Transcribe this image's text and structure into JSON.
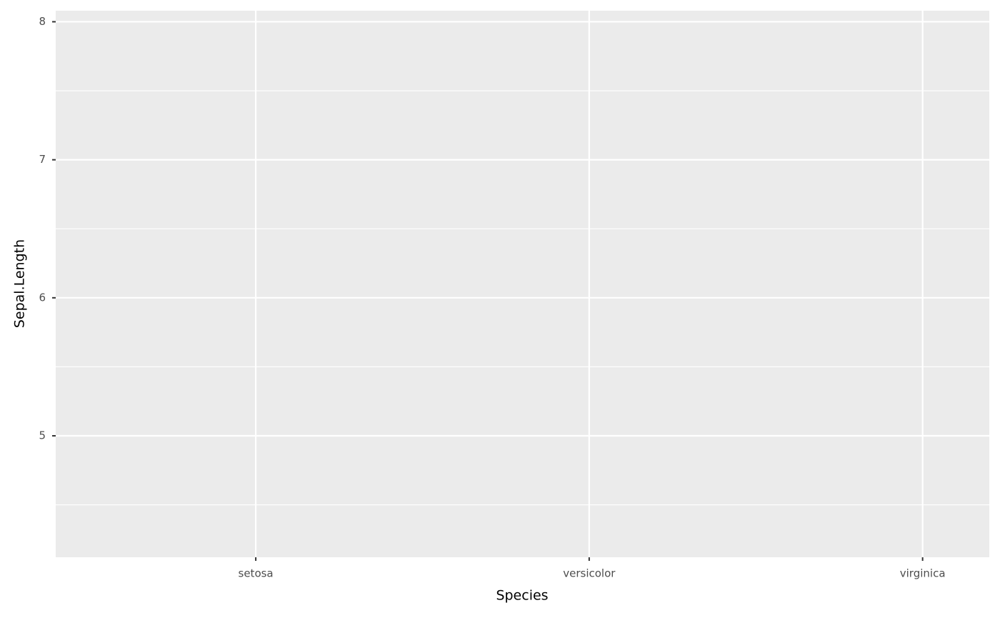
{
  "chart_data": {
    "type": "scatter",
    "x_label": "Species",
    "y_label": "Sepal.Length",
    "categories": [
      "setosa",
      "versicolor",
      "virginica"
    ],
    "ylim": [
      4.12,
      8.08
    ],
    "yticks": [
      5,
      6,
      7,
      8
    ],
    "minor_yticks": [
      4.5,
      5.5,
      6.5,
      7.5
    ],
    "grid": true,
    "panel_color": "#ebebeb"
  }
}
